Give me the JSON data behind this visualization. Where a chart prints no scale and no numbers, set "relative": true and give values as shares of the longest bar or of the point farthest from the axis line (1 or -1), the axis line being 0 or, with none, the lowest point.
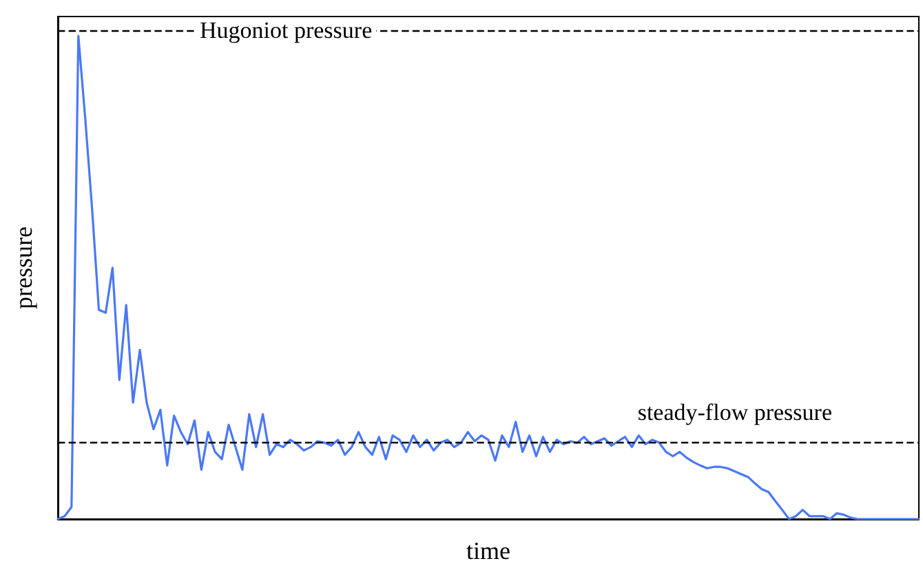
{
  "chart_data": {
    "type": "line",
    "xlabel": "time",
    "ylabel": "pressure",
    "relative": true,
    "marker": "none",
    "line_style": "solid",
    "grid": false,
    "categories": [
      null,
      null,
      null,
      null,
      null,
      null,
      null,
      null,
      null,
      null,
      null,
      null,
      null,
      null,
      null,
      null,
      null,
      null,
      null,
      null,
      null,
      null,
      null,
      null,
      null,
      null,
      null,
      null,
      null,
      null,
      null,
      null,
      null,
      null,
      null,
      null,
      null,
      null,
      null,
      null,
      null,
      null,
      null,
      null,
      null,
      null,
      null,
      null,
      null,
      null,
      null,
      null,
      null,
      null,
      null,
      null,
      null,
      null,
      null,
      null,
      null,
      null,
      null,
      null,
      null,
      null,
      null,
      null,
      null,
      null,
      null,
      null,
      null,
      null,
      null,
      null,
      null,
      null,
      null,
      null,
      null,
      null,
      null,
      null,
      null,
      null,
      null,
      null,
      null,
      null,
      null,
      null,
      null,
      null,
      null,
      null,
      null,
      null,
      null,
      null,
      null,
      null,
      null,
      null,
      null,
      null,
      null,
      null,
      null,
      null,
      null,
      null,
      null,
      null,
      null,
      null,
      null,
      null,
      null,
      null,
      null,
      null,
      null,
      null,
      null,
      null,
      null
    ],
    "series": [
      {
        "color": "#4a78f5",
        "values": [
          0,
          0.006,
          0.025,
          1,
          0.83,
          0.644,
          0.433,
          0.427,
          0.52,
          0.288,
          0.443,
          0.241,
          0.35,
          0.241,
          0.186,
          0.226,
          0.111,
          0.214,
          0.18,
          0.155,
          0.204,
          0.102,
          0.18,
          0.139,
          0.124,
          0.195,
          0.149,
          0.102,
          0.217,
          0.149,
          0.217,
          0.133,
          0.155,
          0.149,
          0.164,
          0.155,
          0.142,
          0.149,
          0.161,
          0.158,
          0.152,
          0.164,
          0.133,
          0.149,
          0.18,
          0.149,
          0.133,
          0.17,
          0.124,
          0.173,
          0.164,
          0.139,
          0.173,
          0.149,
          0.164,
          0.142,
          0.158,
          0.164,
          0.149,
          0.158,
          0.18,
          0.161,
          0.173,
          0.164,
          0.121,
          0.173,
          0.149,
          0.201,
          0.139,
          0.173,
          0.13,
          0.17,
          0.139,
          0.164,
          0.155,
          0.161,
          0.158,
          0.17,
          0.155,
          0.161,
          0.167,
          0.152,
          0.161,
          0.17,
          0.149,
          0.173,
          0.155,
          0.164,
          0.158,
          0.139,
          0.13,
          0.139,
          0.127,
          0.118,
          0.111,
          0.105,
          0.108,
          0.108,
          0.105,
          0.099,
          0.093,
          0.087,
          0.074,
          0.062,
          0.056,
          0.037,
          0.019,
          0,
          0.006,
          0.019,
          0.006,
          0.006,
          0.006,
          0,
          0.012,
          0.009,
          0.003,
          0,
          0,
          0,
          0,
          0,
          0,
          0,
          0,
          0,
          0
        ]
      }
    ],
    "ref_lines": [
      {
        "axis": "y",
        "value": 1.01,
        "label": "Hugoniot pressure",
        "color": "#000000",
        "line_style": "dashed"
      },
      {
        "axis": "y",
        "value": 0.161,
        "label": "steady-flow pressure",
        "color": "#000000",
        "line_style": "dashed"
      }
    ]
  }
}
